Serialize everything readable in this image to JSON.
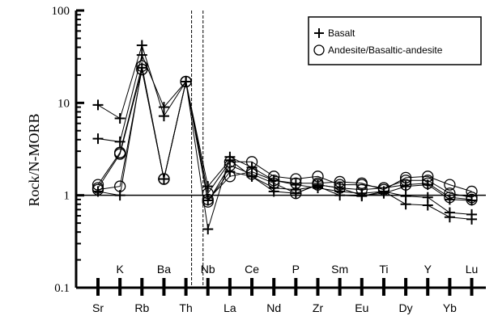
{
  "chart_data": {
    "type": "line",
    "title": "",
    "xlabel": "",
    "ylabel": "Rock/N-MORB",
    "yscale": "log",
    "ylim": [
      0.1,
      100
    ],
    "y_ticks": [
      "0.1",
      "1",
      "10",
      "100"
    ],
    "reference_line_y": 1,
    "grid": false,
    "legend_position": "top-right",
    "categories": [
      "Sr",
      "K",
      "Rb",
      "Ba",
      "Th",
      "Nb",
      "La",
      "Ce",
      "Nd",
      "P",
      "Zr",
      "Sm",
      "Eu",
      "Ti",
      "Dy",
      "Y",
      "Yb",
      "Lu"
    ],
    "bottom_row_labels": [
      "Sr",
      "Rb",
      "Th",
      "La",
      "Nd",
      "Zr",
      "Eu",
      "Dy",
      "Yb"
    ],
    "upper_row_labels": [
      "K",
      "Ba",
      "Nb",
      "Ce",
      "P",
      "Sm",
      "Ti",
      "Y",
      "Lu"
    ],
    "dashed_verticals_at": [
      "Th",
      "Nb"
    ],
    "series_styles": {
      "basalt": {
        "marker": "plus",
        "color": "#000000"
      },
      "andesite": {
        "marker": "circle",
        "color": "#000000"
      }
    },
    "series": [
      {
        "group": "basalt",
        "values": [
          9.5,
          6.8,
          42,
          7.2,
          17,
          0.43,
          2.6,
          2.0,
          1.45,
          1.3,
          1.2,
          1.1,
          1.05,
          1.1,
          0.8,
          0.78,
          0.58,
          0.55
        ]
      },
      {
        "group": "basalt",
        "values": [
          4.1,
          3.8,
          33,
          9.0,
          17,
          1.25,
          2.4,
          1.6,
          1.2,
          1.15,
          1.25,
          1.0,
          0.98,
          1.1,
          0.98,
          0.95,
          0.65,
          0.62
        ]
      },
      {
        "group": "basalt",
        "values": [
          1.1,
          1.0,
          24,
          1.5,
          17,
          0.88,
          1.8,
          1.6,
          1.1,
          1.05,
          1.3,
          1.2,
          1.0,
          1.05,
          1.25,
          1.3,
          0.9,
          0.88
        ]
      },
      {
        "group": "andesite",
        "values": [
          1.3,
          2.9,
          25,
          1.5,
          17,
          0.9,
          1.6,
          1.8,
          1.45,
          1.35,
          1.35,
          1.4,
          1.35,
          1.15,
          1.55,
          1.6,
          1.3,
          1.1
        ]
      },
      {
        "group": "andesite",
        "values": [
          1.15,
          1.25,
          23,
          1.5,
          17,
          1.05,
          2.3,
          2.3,
          1.6,
          1.5,
          1.6,
          1.3,
          1.3,
          1.2,
          1.45,
          1.45,
          1.05,
          0.95
        ]
      },
      {
        "group": "andesite",
        "values": [
          1.2,
          2.8,
          23,
          1.5,
          17,
          0.85,
          2.1,
          1.7,
          1.35,
          1.05,
          1.3,
          1.2,
          1.15,
          1.2,
          1.3,
          1.35,
          0.95,
          0.9
        ]
      }
    ],
    "legend": [
      {
        "marker": "plus",
        "label": "Basalt"
      },
      {
        "marker": "circle",
        "label": "Andesite/Basaltic-andesite"
      }
    ]
  }
}
